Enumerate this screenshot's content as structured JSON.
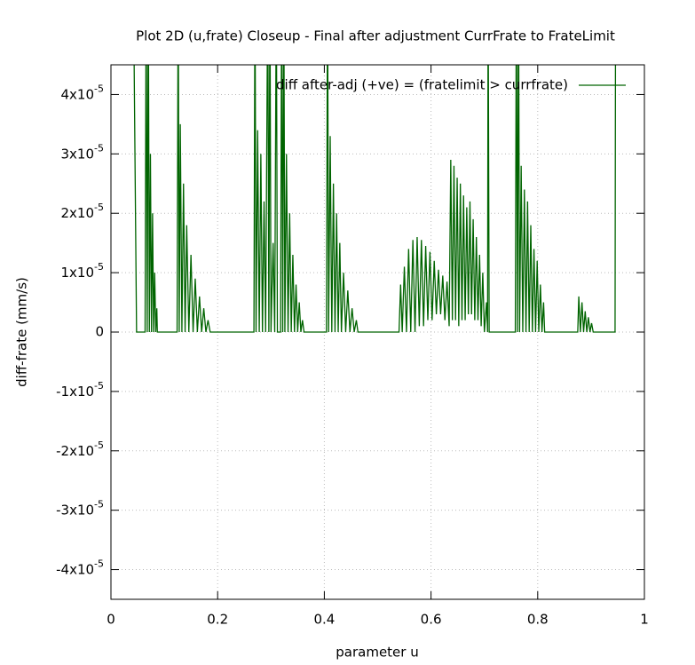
{
  "chart_data": {
    "type": "line",
    "title": "Plot 2D (u,frate) Closeup - Final after adjustment CurrFrate to FrateLimit",
    "xlabel": "parameter u",
    "ylabel": "diff-frate (mm/s)",
    "xlim": [
      0,
      1
    ],
    "xticks": [
      0,
      0.2,
      0.4,
      0.6,
      0.8,
      1
    ],
    "ylim": [
      -4.5e-05,
      4.5e-05
    ],
    "yticks": [
      {
        "value": -4e-05,
        "label": "-4x10",
        "exponent": "-5"
      },
      {
        "value": -3e-05,
        "label": "-3x10",
        "exponent": "-5"
      },
      {
        "value": -2e-05,
        "label": "-2x10",
        "exponent": "-5"
      },
      {
        "value": -1e-05,
        "label": "-1x10",
        "exponent": "-5"
      },
      0,
      {
        "value": 1e-05,
        "label": "1x10",
        "exponent": "-5"
      },
      {
        "value": 2e-05,
        "label": "2x10",
        "exponent": "-5"
      },
      {
        "value": 3e-05,
        "label": "3x10",
        "exponent": "-5"
      },
      {
        "value": 4e-05,
        "label": "4x10",
        "exponent": "-5"
      }
    ],
    "grid": true,
    "legend": "top-right",
    "x": [
      0.042,
      0.048,
      0.064,
      0.066,
      0.068,
      0.07,
      0.072,
      0.074,
      0.076,
      0.078,
      0.08,
      0.082,
      0.084,
      0.086,
      0.087,
      0.124,
      0.126,
      0.128,
      0.13,
      0.133,
      0.136,
      0.139,
      0.142,
      0.146,
      0.15,
      0.154,
      0.158,
      0.162,
      0.166,
      0.17,
      0.174,
      0.178,
      0.182,
      0.186,
      0.268,
      0.27,
      0.272,
      0.275,
      0.278,
      0.281,
      0.284,
      0.287,
      0.29,
      0.294,
      0.296,
      0.298,
      0.3,
      0.304,
      0.307,
      0.31,
      0.312,
      0.318,
      0.32,
      0.322,
      0.324,
      0.326,
      0.329,
      0.332,
      0.335,
      0.338,
      0.341,
      0.344,
      0.347,
      0.35,
      0.353,
      0.356,
      0.359,
      0.362,
      0.404,
      0.406,
      0.408,
      0.411,
      0.414,
      0.417,
      0.42,
      0.423,
      0.426,
      0.429,
      0.432,
      0.436,
      0.44,
      0.444,
      0.448,
      0.452,
      0.456,
      0.46,
      0.463,
      0.54,
      0.543,
      0.546,
      0.55,
      0.554,
      0.558,
      0.562,
      0.566,
      0.57,
      0.574,
      0.578,
      0.582,
      0.586,
      0.59,
      0.594,
      0.598,
      0.602,
      0.606,
      0.61,
      0.614,
      0.618,
      0.622,
      0.626,
      0.63,
      0.634,
      0.637,
      0.64,
      0.643,
      0.646,
      0.649,
      0.652,
      0.655,
      0.658,
      0.661,
      0.664,
      0.667,
      0.67,
      0.673,
      0.676,
      0.679,
      0.682,
      0.685,
      0.688,
      0.691,
      0.694,
      0.697,
      0.7,
      0.704,
      0.706,
      0.707,
      0.709,
      0.758,
      0.76,
      0.762,
      0.764,
      0.766,
      0.769,
      0.772,
      0.775,
      0.778,
      0.781,
      0.784,
      0.787,
      0.79,
      0.793,
      0.796,
      0.799,
      0.802,
      0.805,
      0.808,
      0.811,
      0.813,
      0.875,
      0.877,
      0.88,
      0.883,
      0.886,
      0.889,
      0.892,
      0.895,
      0.898,
      0.901,
      0.904,
      0.945,
      0.946
    ],
    "series": [
      {
        "name": "diff after-adj (+ve) = (fratelimit > currfrate)",
        "color": "#006400",
        "values": [
          6e-05,
          0,
          0,
          6e-05,
          0,
          6e-05,
          0,
          3e-05,
          0,
          2e-05,
          0,
          1e-05,
          0,
          4e-06,
          0,
          0,
          6e-05,
          0,
          3.5e-05,
          0,
          2.5e-05,
          0,
          1.8e-05,
          0,
          1.3e-05,
          0,
          9e-06,
          0,
          6e-06,
          0,
          4e-06,
          0,
          2e-06,
          0,
          0,
          6e-05,
          0,
          3.4e-05,
          0,
          3e-05,
          0,
          2.2e-05,
          0,
          6e-05,
          0,
          6e-05,
          0,
          1.5e-05,
          0,
          6e-05,
          0,
          0,
          6e-05,
          0,
          6e-05,
          0,
          3e-05,
          0,
          2e-05,
          0,
          1.3e-05,
          0,
          8e-06,
          0,
          5e-06,
          0,
          2e-06,
          0,
          0,
          6e-05,
          0,
          3.3e-05,
          0,
          2.5e-05,
          0,
          2e-05,
          0,
          1.5e-05,
          0,
          1e-05,
          0,
          7e-06,
          0,
          4e-06,
          0,
          2e-06,
          0,
          0,
          8e-06,
          0,
          1.1e-05,
          0,
          1.4e-05,
          0,
          1.55e-05,
          0,
          1.6e-05,
          1e-06,
          1.55e-05,
          1e-06,
          1.45e-05,
          2e-06,
          1.35e-05,
          2e-06,
          1.2e-05,
          3e-06,
          1.05e-05,
          3e-06,
          9.5e-06,
          2e-06,
          8.5e-06,
          1e-06,
          2.9e-05,
          2e-06,
          2.8e-05,
          2e-06,
          2.6e-05,
          1e-06,
          2.5e-05,
          2e-06,
          2.3e-05,
          2e-06,
          2.1e-05,
          3e-06,
          2.2e-05,
          3e-06,
          1.9e-05,
          2e-06,
          1.6e-05,
          2e-06,
          1.3e-05,
          1e-06,
          1e-05,
          0,
          5e-06,
          0,
          6e-05,
          0,
          0,
          6e-05,
          0,
          6e-05,
          0,
          2.8e-05,
          0,
          2.4e-05,
          0,
          2.2e-05,
          0,
          1.8e-05,
          0,
          1.4e-05,
          0,
          1.2e-05,
          0,
          8e-06,
          0,
          5e-06,
          0,
          0,
          6e-06,
          0,
          5e-06,
          0,
          3.5e-06,
          0,
          2.5e-06,
          0,
          1.5e-06,
          0,
          0,
          6e-05
        ]
      }
    ]
  }
}
